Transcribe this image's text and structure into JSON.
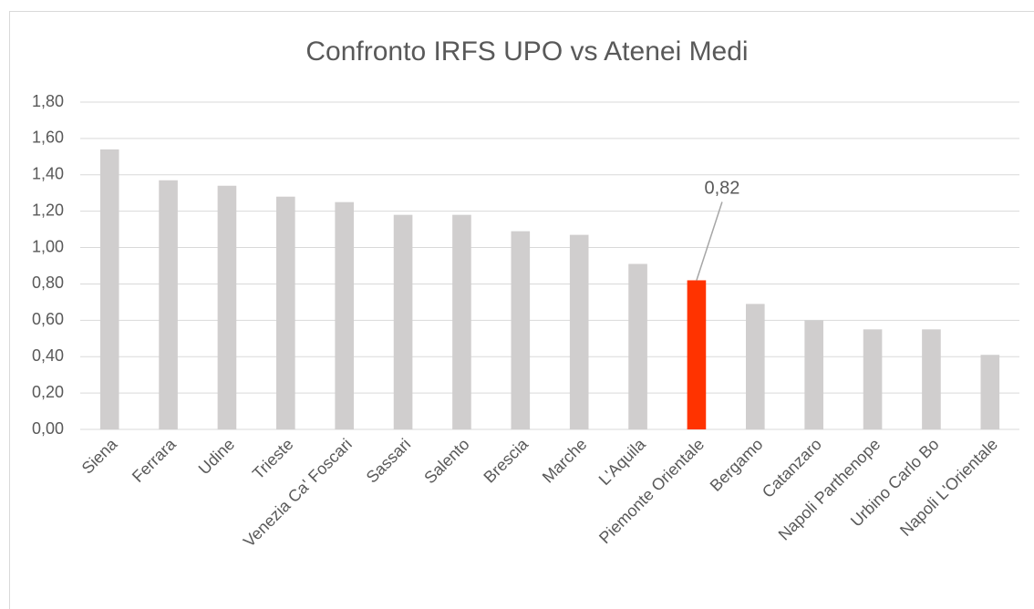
{
  "chart_data": {
    "type": "bar",
    "title": "Confronto IRFS UPO vs Atenei Medi",
    "categories": [
      "Siena",
      "Ferrara",
      "Udine",
      "Trieste",
      "Venezia Ca' Foscari",
      "Sassari",
      "Salento",
      "Brescia",
      "Marche",
      "L'Aquila",
      "Piemonte Orientale",
      "Bergamo",
      "Catanzaro",
      "Napoli Parthenope",
      "Urbino Carlo Bo",
      "Napoli L'Orientale"
    ],
    "values": [
      1.54,
      1.37,
      1.34,
      1.28,
      1.25,
      1.18,
      1.18,
      1.09,
      1.07,
      0.91,
      0.82,
      0.69,
      0.6,
      0.55,
      0.55,
      0.41
    ],
    "value_labels": [
      null,
      null,
      null,
      null,
      null,
      null,
      null,
      null,
      null,
      null,
      "0,82",
      null,
      null,
      null,
      null,
      null
    ],
    "colors": [
      "#d0cece",
      "#d0cece",
      "#d0cece",
      "#d0cece",
      "#d0cece",
      "#d0cece",
      "#d0cece",
      "#d0cece",
      "#d0cece",
      "#d0cece",
      "#ff3300",
      "#d0cece",
      "#d0cece",
      "#d0cece",
      "#d0cece",
      "#d0cece"
    ],
    "ylim": [
      0,
      1.8
    ],
    "yticks": [
      {
        "value": 0,
        "label": "0,00"
      },
      {
        "value": 0.2,
        "label": "0,20"
      },
      {
        "value": 0.4,
        "label": "0,40"
      },
      {
        "value": 0.6,
        "label": "0,60"
      },
      {
        "value": 0.8,
        "label": "0,80"
      },
      {
        "value": 1.0,
        "label": "1,00"
      },
      {
        "value": 1.2,
        "label": "1,20"
      },
      {
        "value": 1.4,
        "label": "1,40"
      },
      {
        "value": 1.6,
        "label": "1,60"
      },
      {
        "value": 1.8,
        "label": "1,80"
      }
    ],
    "grid": true
  }
}
